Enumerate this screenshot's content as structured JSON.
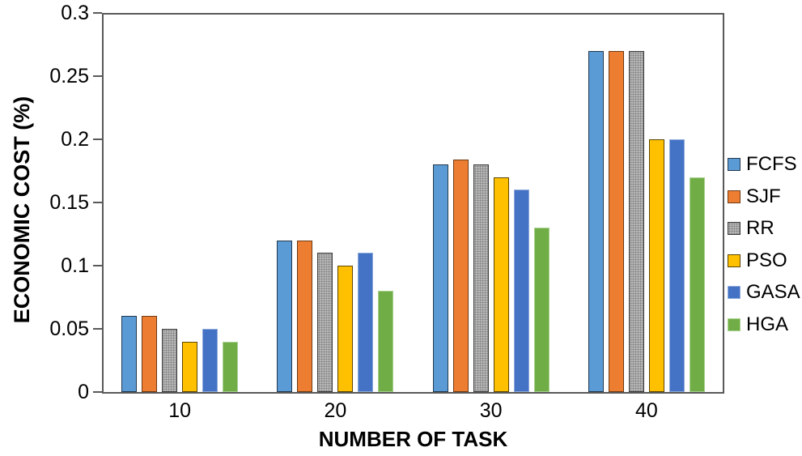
{
  "chart_data": {
    "type": "bar",
    "title": "",
    "xlabel": "NUMBER OF TASK",
    "ylabel": "ECONOMIC COST (%)",
    "categories": [
      "10",
      "20",
      "30",
      "40"
    ],
    "series": [
      {
        "name": "FCFS",
        "values": [
          0.06,
          0.12,
          0.18,
          0.27
        ],
        "color": "#5B9BD5",
        "border": "#23394E",
        "pattern": "solid"
      },
      {
        "name": "SJF",
        "values": [
          0.06,
          0.12,
          0.184,
          0.27
        ],
        "color": "#ED7D31",
        "border": "#6E3A13",
        "pattern": "solid"
      },
      {
        "name": "RR",
        "values": [
          0.05,
          0.11,
          0.18,
          0.27
        ],
        "color": "#B7B7B7",
        "border": "#3B3B3B",
        "pattern": "dotted"
      },
      {
        "name": "PSO",
        "values": [
          0.04,
          0.1,
          0.17,
          0.2
        ],
        "color": "#FFC000",
        "border": "#5C4600",
        "pattern": "solid"
      },
      {
        "name": "GASA",
        "values": [
          0.05,
          0.11,
          0.16,
          0.2
        ],
        "color": "#4472C4",
        "border": "#8FAADC",
        "pattern": "solid"
      },
      {
        "name": "HGA",
        "values": [
          0.04,
          0.08,
          0.13,
          0.17
        ],
        "color": "#70AD47",
        "border": "#A9D18E",
        "pattern": "solid"
      }
    ],
    "ylim": [
      0,
      0.3
    ],
    "yticks": [
      "0.3",
      "0.25",
      "0.2",
      "0.15",
      "0.1",
      "0.05",
      "0"
    ],
    "grid": false,
    "legend_position": "right",
    "frame_color": "#595959"
  }
}
